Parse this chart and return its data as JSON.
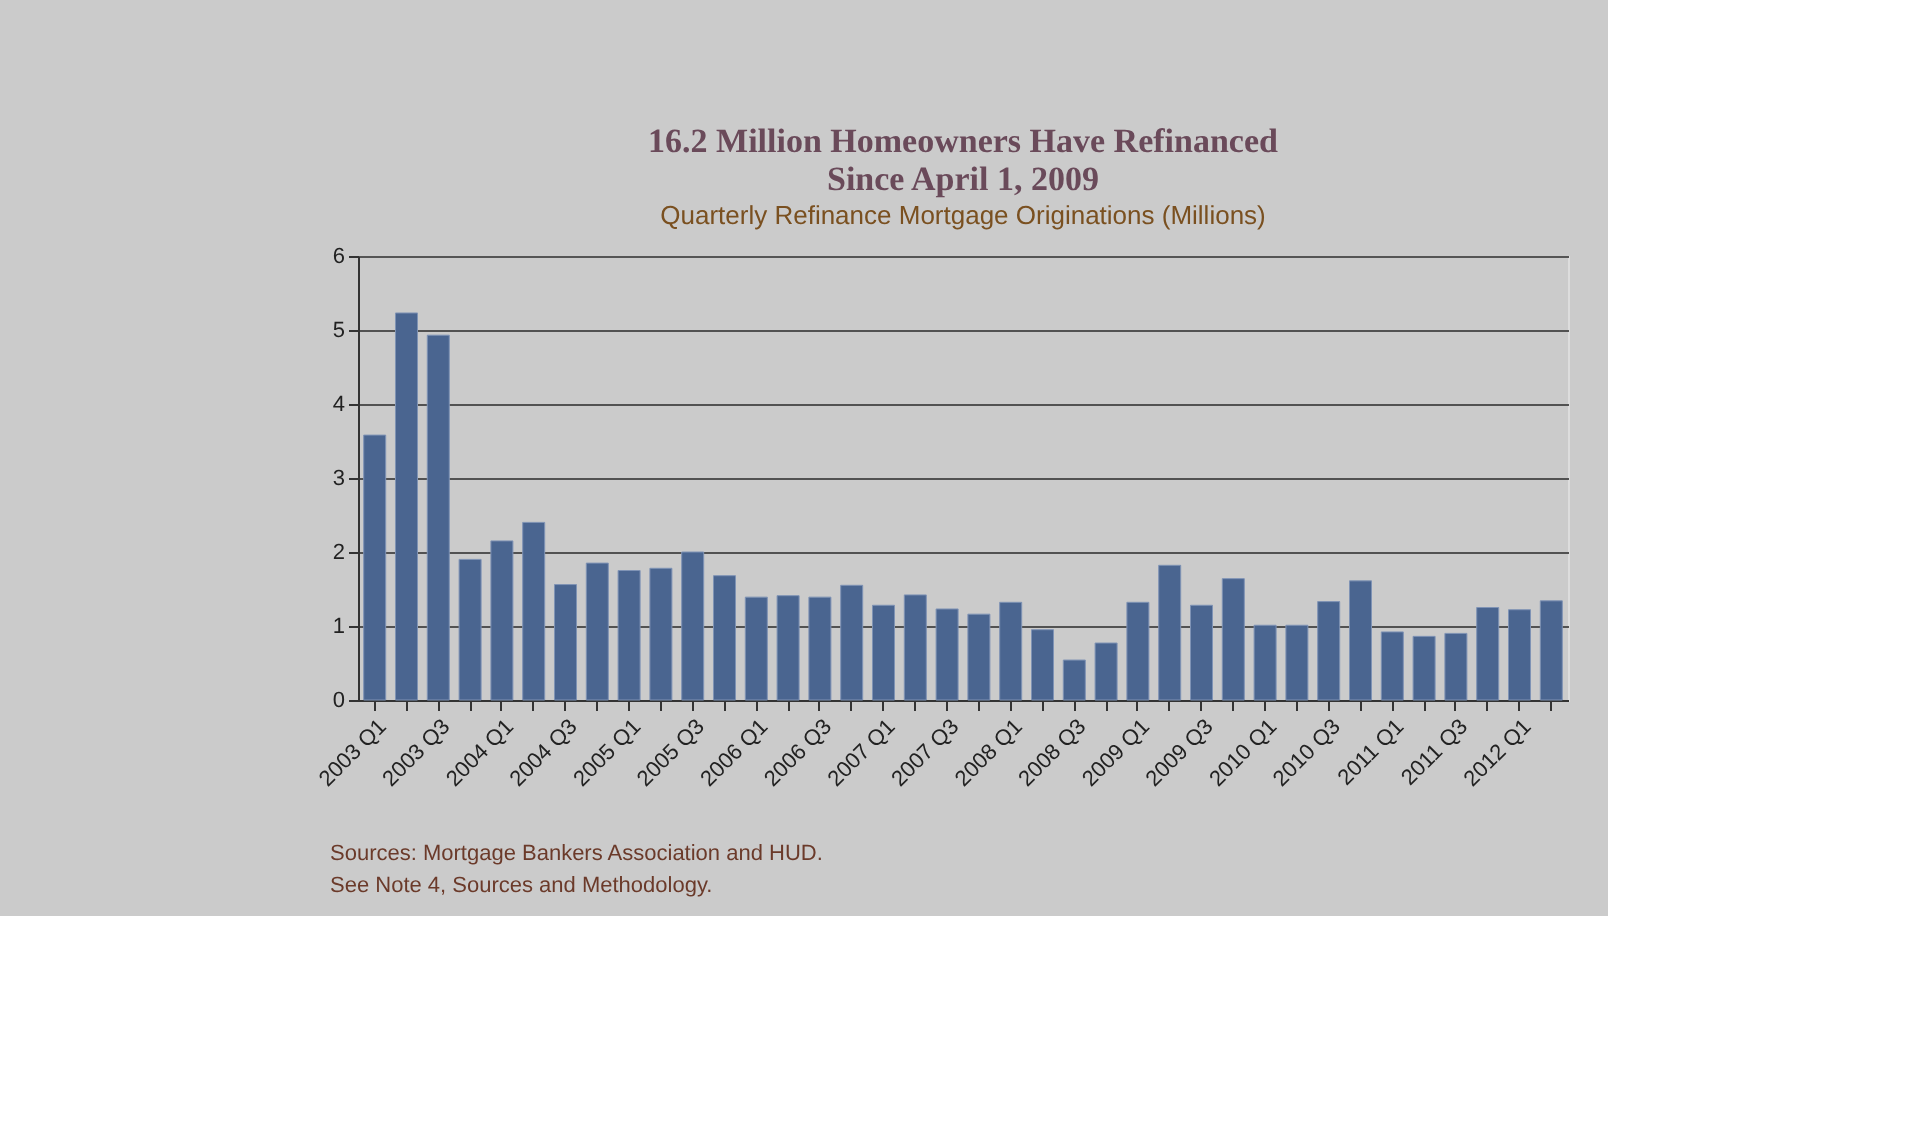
{
  "chart_data": {
    "type": "bar",
    "title": "16.2 Million Homeowners Have Refinanced\nSince April 1, 2009",
    "subtitle": "Quarterly Refinance Mortgage Originations (Millions)",
    "categories": [
      "2003 Q1",
      null,
      "2003 Q3",
      null,
      "2004 Q1",
      null,
      "2004 Q3",
      null,
      "2005 Q1",
      null,
      "2005 Q3",
      null,
      "2006 Q1",
      null,
      "2006 Q3",
      null,
      "2007 Q1",
      null,
      "2007 Q3",
      null,
      "2008 Q1",
      null,
      "2008 Q3",
      null,
      "2009 Q1",
      null,
      "2009 Q3",
      null,
      "2010 Q1",
      null,
      "2010 Q3",
      null,
      "2011 Q1",
      null,
      "2011 Q3",
      null,
      "2012 Q1",
      null
    ],
    "values": [
      3.58,
      5.23,
      4.93,
      1.9,
      2.15,
      2.4,
      1.56,
      1.85,
      1.75,
      1.78,
      2.0,
      1.68,
      1.39,
      1.41,
      1.39,
      1.55,
      1.28,
      1.42,
      1.23,
      1.16,
      1.32,
      0.95,
      0.54,
      0.77,
      1.32,
      1.82,
      1.28,
      1.64,
      1.01,
      1.01,
      1.33,
      1.61,
      0.92,
      0.86,
      0.9,
      1.25,
      1.22,
      1.34
    ],
    "color": "#4a6590",
    "ylim": [
      0,
      6
    ],
    "yticks": [
      0,
      1,
      2,
      3,
      4,
      5,
      6
    ],
    "grid": "y",
    "annotations": [
      "Sources:  Mortgage Bankers Association and HUD.",
      "See Note 4, Sources and Methodology."
    ]
  }
}
